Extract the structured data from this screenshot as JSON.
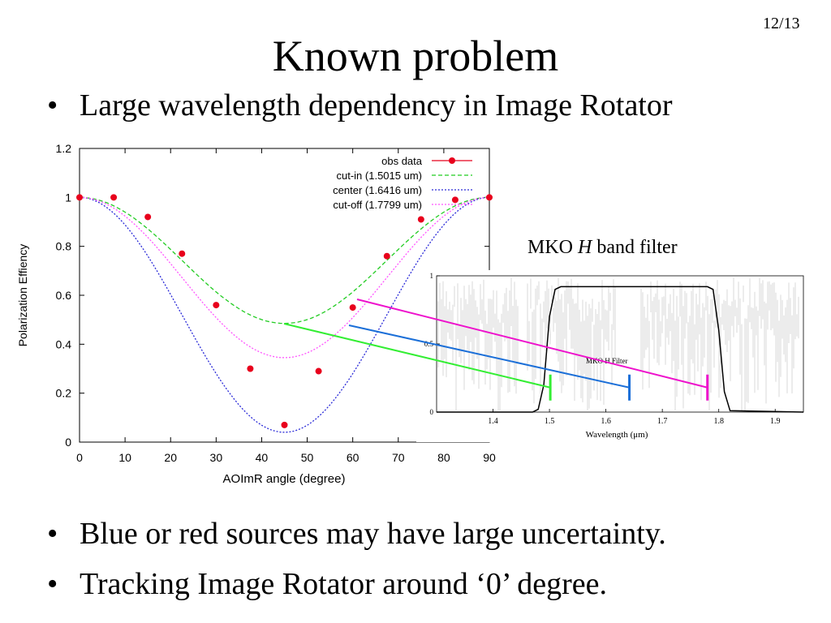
{
  "slide": {
    "page_number": "12/13",
    "title": "Known problem",
    "bullets": [
      "Large wavelength dependency in Image Rotator",
      "Blue or red sources may have large uncertainty.",
      "Tracking Image Rotator around ‘0’ degree."
    ],
    "bullet_symbol": "•"
  },
  "chart_data": [
    {
      "type": "line",
      "xlabel": "AOImR angle (degree)",
      "ylabel": "Polarization Effiency",
      "xlim": [
        0,
        90
      ],
      "ylim": [
        0,
        1.2
      ],
      "xticks": [
        0,
        10,
        20,
        30,
        40,
        50,
        60,
        70,
        80,
        90
      ],
      "yticks": [
        0,
        0.2,
        0.4,
        0.6,
        0.8,
        1,
        1.2
      ],
      "ytick_labels": [
        "0",
        "0.2",
        "0.4",
        "0.6",
        "0.8",
        "1",
        "1.2"
      ],
      "legend_position": "top-right",
      "series": [
        {
          "name": "obs data",
          "kind": "points",
          "color": "#e8001c",
          "x": [
            0,
            7.5,
            15,
            22.5,
            30,
            37.5,
            45,
            52.5,
            60,
            67.5,
            75,
            82.5,
            90
          ],
          "y": [
            1.0,
            1.0,
            0.92,
            0.77,
            0.56,
            0.3,
            0.07,
            0.29,
            0.55,
            0.76,
            0.91,
            0.99,
            1.0
          ]
        },
        {
          "name": "cut-in (1.5015 um)",
          "kind": "dashed",
          "color": "#22cc22",
          "min_value": 0.485
        },
        {
          "name": "center (1.6416 um)",
          "kind": "dotted",
          "color": "#2b2bd8",
          "min_value": 0.04
        },
        {
          "name": "cut-off (1.7799 um)",
          "kind": "dotted",
          "color": "#ff55ff",
          "min_value": 0.345
        }
      ]
    },
    {
      "type": "line",
      "title": "MKO H Filter",
      "xlabel": "Wavelength (μm)",
      "xlim": [
        1.3,
        1.95
      ],
      "ylim": [
        0,
        1
      ],
      "xticks": [
        1.4,
        1.5,
        1.6,
        1.7,
        1.8,
        1.9
      ],
      "yticks": [
        0,
        0.5,
        1
      ],
      "series": [
        {
          "name": "MKO H Filter",
          "x": [
            1.3,
            1.47,
            1.48,
            1.49,
            1.5,
            1.51,
            1.52,
            1.78,
            1.79,
            1.8,
            1.81,
            1.82,
            1.95
          ],
          "y": [
            0,
            0,
            0.02,
            0.2,
            0.7,
            0.9,
            0.92,
            0.92,
            0.9,
            0.6,
            0.15,
            0.01,
            0
          ]
        }
      ],
      "markers": [
        {
          "x": 1.5015,
          "color": "#33ee33"
        },
        {
          "x": 1.6416,
          "color": "#1b6fd8"
        },
        {
          "x": 1.7799,
          "color": "#ee11cc"
        }
      ]
    }
  ],
  "inset": {
    "label_prefix": "MKO ",
    "label_italic": "H",
    "label_suffix": " band filter"
  }
}
